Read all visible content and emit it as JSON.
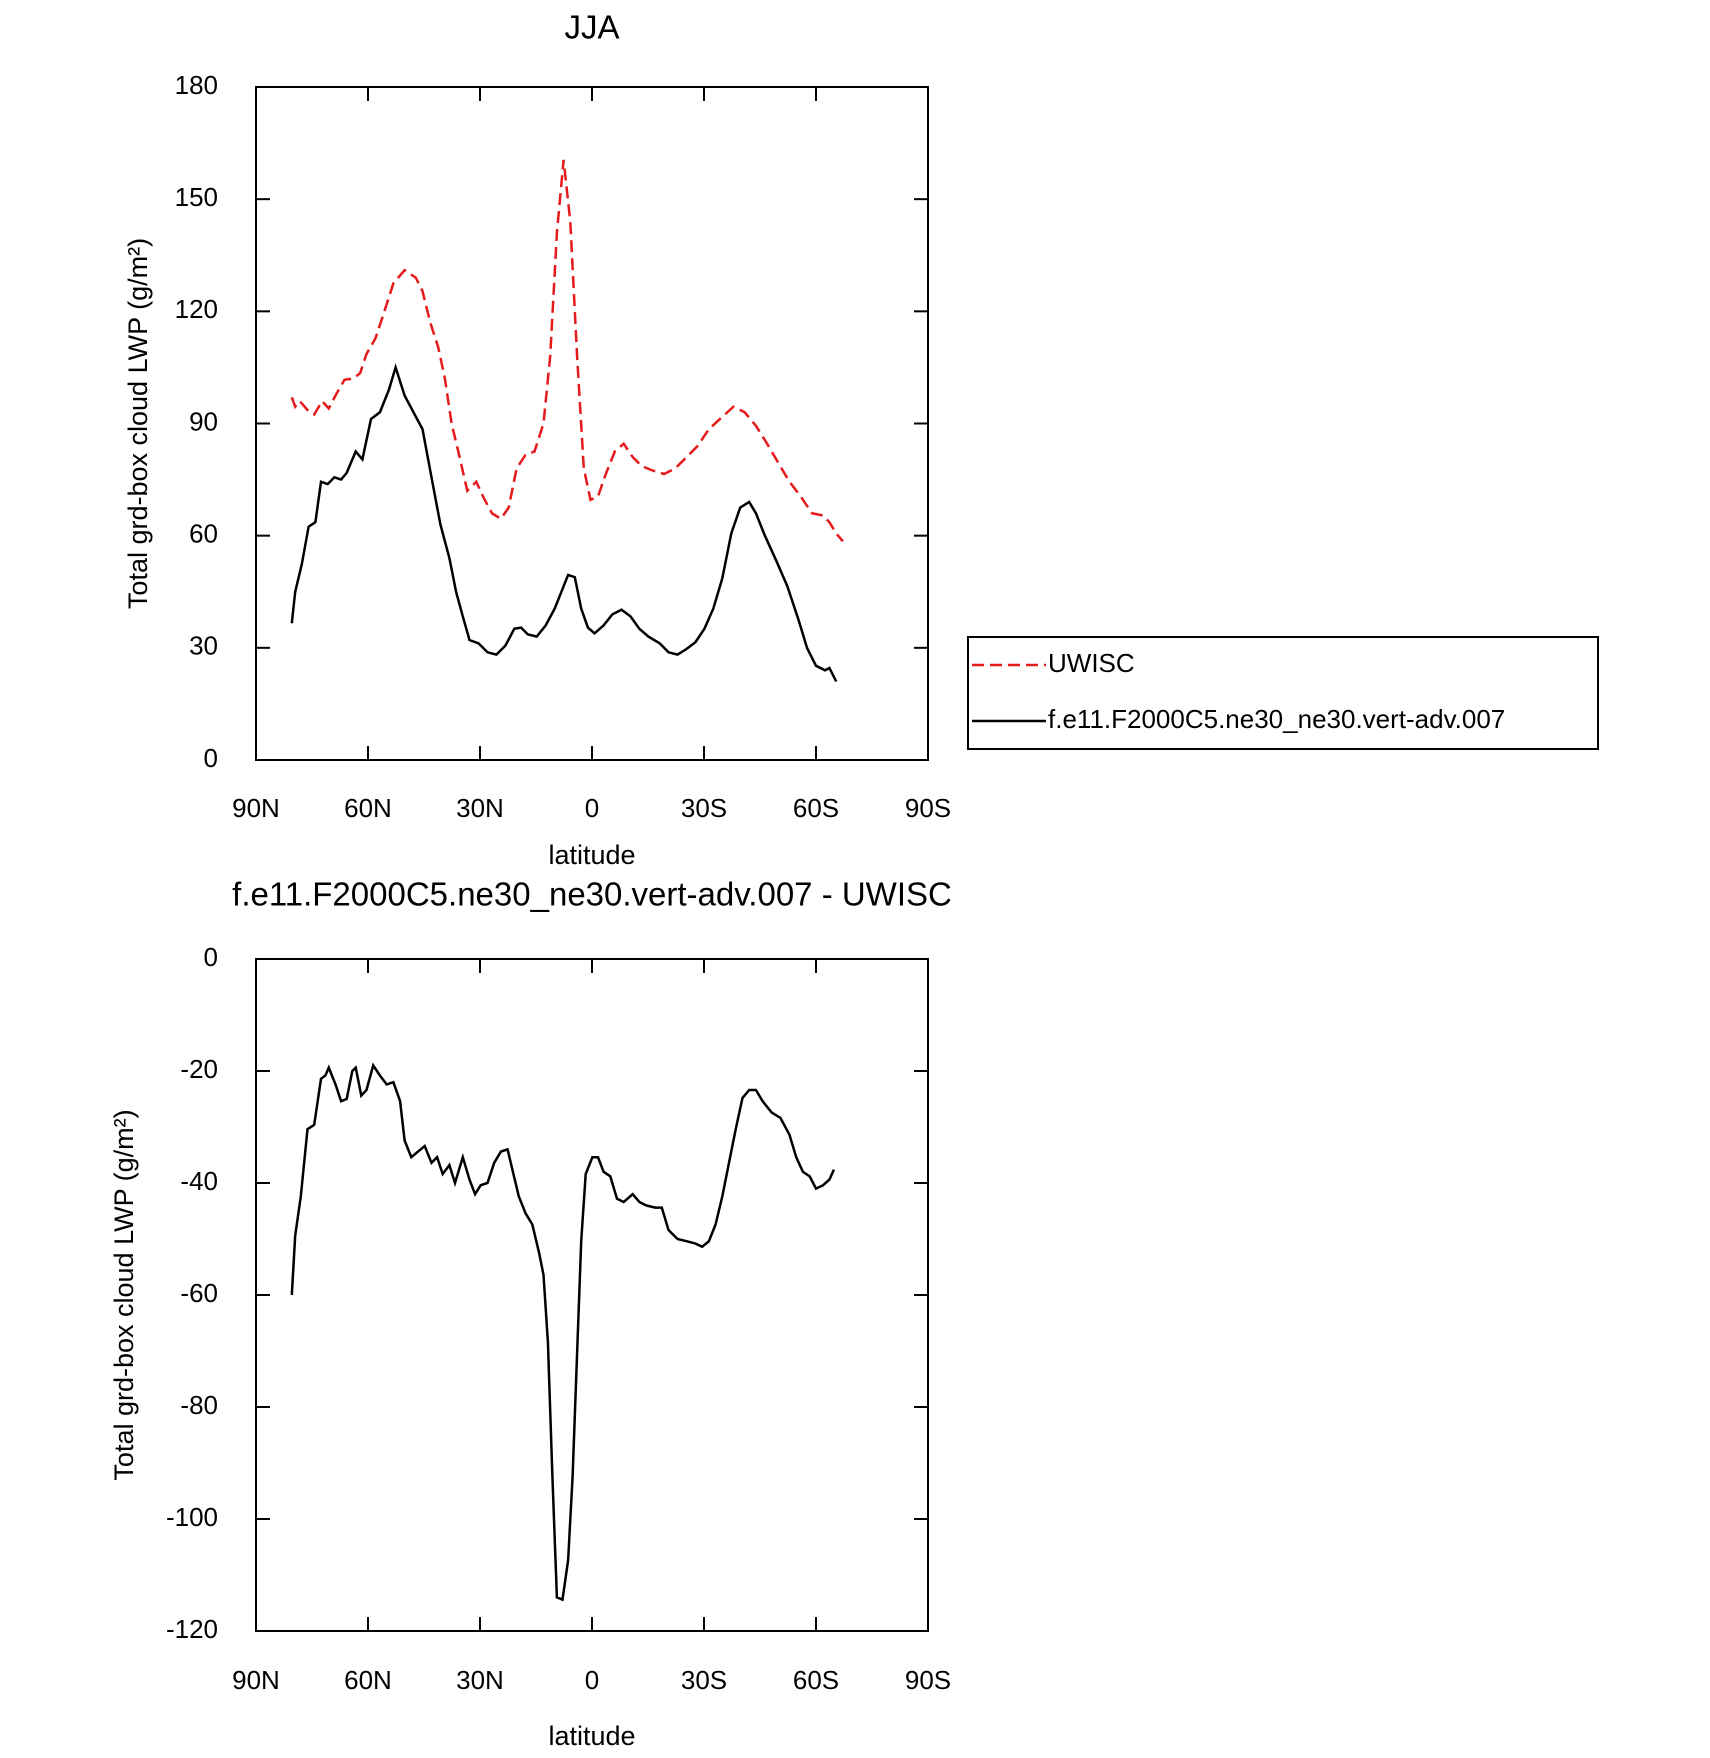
{
  "chart_data": [
    {
      "type": "line",
      "title": "JJA",
      "xlabel": "latitude",
      "ylabel": "Total grd-box cloud LWP (g/m²)",
      "xlim": [
        90,
        -90
      ],
      "xticks": [
        {
          "value": 90,
          "label": "90N"
        },
        {
          "value": 60,
          "label": "60N"
        },
        {
          "value": 30,
          "label": "30N"
        },
        0,
        {
          "value": -30,
          "label": "30S"
        },
        {
          "value": -60,
          "label": "60S"
        },
        {
          "value": -90,
          "label": "90S"
        }
      ],
      "ylim": [
        0,
        180
      ],
      "yticks": [
        0,
        30,
        60,
        90,
        120,
        150,
        180
      ],
      "legend": "right",
      "series": [
        {
          "name": "UWISC",
          "color": "#e41a1c",
          "line_style": "dashed",
          "x": [
            80.4,
            79.5,
            78.3,
            76.2,
            74.4,
            72.3,
            70.5,
            68.7,
            66.3,
            63.9,
            62.1,
            60.4,
            58,
            55.6,
            53.2,
            50.2,
            47.2,
            45.4,
            43.3,
            41.2,
            39.4,
            37.6,
            35.8,
            33.4,
            31,
            29.2,
            26.8,
            24.4,
            22.3,
            20.2,
            17.8,
            15.4,
            13,
            11.2,
            9.4,
            7.6,
            5.8,
            4,
            2.2,
            0.4,
            -1.6,
            -3.7,
            -6.1,
            -8.5,
            -10.9,
            -13.3,
            -16.3,
            -19.3,
            -22.3,
            -25.3,
            -28.3,
            -31.3,
            -34.9,
            -37.9,
            -40.9,
            -43.9,
            -46.9,
            -49.9,
            -52.9,
            -55.9,
            -58.9,
            -61.9,
            -63.6,
            -65.4,
            -67.2
          ],
          "values": [
            97,
            94.5,
            96,
            93.6,
            92.4,
            96,
            94,
            97.5,
            101.7,
            102,
            103.5,
            108.6,
            112.8,
            120,
            127.5,
            131,
            129,
            125.4,
            117,
            110.4,
            102,
            90,
            82.5,
            72,
            74.4,
            70.5,
            66,
            64.5,
            67.5,
            78,
            81.6,
            82.5,
            90,
            108,
            141,
            160.5,
            144,
            108,
            78,
            69.6,
            70.5,
            76.5,
            82.5,
            84.6,
            81,
            78.6,
            77.4,
            76.5,
            78,
            81,
            84,
            88.5,
            91.8,
            94.5,
            93,
            89.4,
            84.6,
            79.5,
            74.4,
            70.5,
            66,
            65.4,
            63.6,
            60.6,
            58.5
          ]
        },
        {
          "name": "f.e11.F2000C5.ne30_ne30.vert-adv.007",
          "color": "#000000",
          "line_style": "solid",
          "x": [
            80.4,
            79.5,
            77.7,
            75.9,
            74.1,
            72.6,
            70.8,
            69,
            67.2,
            65.7,
            63.3,
            61.5,
            59.2,
            56.8,
            54.4,
            52.6,
            50.2,
            47.8,
            45.4,
            43,
            40.6,
            38.2,
            36.4,
            34.6,
            32.8,
            30.4,
            28,
            25.6,
            23.2,
            20.8,
            19,
            17.2,
            14.8,
            12.4,
            10,
            8.2,
            6.4,
            4.6,
            2.9,
            1.1,
            -0.7,
            -3.1,
            -5.5,
            -7.9,
            -10.3,
            -12.7,
            -15.1,
            -18.1,
            -20.5,
            -22.9,
            -25.3,
            -27.7,
            -30.1,
            -32.5,
            -34.9,
            -37.3,
            -39.7,
            -42.1,
            -43.9,
            -46.3,
            -49.3,
            -52.3,
            -55.3,
            -57.6,
            -60,
            -62.4,
            -63.6,
            -65.4
          ],
          "values": [
            36.6,
            45,
            52.5,
            62.4,
            63.6,
            74.4,
            73.8,
            75.6,
            75,
            76.8,
            82.5,
            80.4,
            91.2,
            93,
            99,
            105,
            97.5,
            93,
            88.5,
            75.6,
            63,
            54,
            45,
            38.4,
            32.1,
            31.2,
            28.8,
            28.2,
            30.6,
            35.1,
            35.4,
            33.6,
            33,
            36,
            40.5,
            45,
            49.5,
            48.9,
            40.5,
            35.4,
            33.9,
            36,
            39,
            40.2,
            38.4,
            35.1,
            33,
            31.2,
            28.8,
            28.2,
            29.7,
            31.5,
            35.1,
            40.5,
            48.6,
            60.6,
            67.5,
            69,
            66,
            60,
            53.4,
            46.5,
            37.5,
            30,
            25.2,
            24,
            24.6,
            21
          ]
        }
      ]
    },
    {
      "type": "line",
      "title": "f.e11.F2000C5.ne30_ne30.vert-adv.007 - UWISC",
      "xlabel": "latitude",
      "ylabel": "Total grd-box cloud LWP (g/m²)",
      "xlim": [
        90,
        -90
      ],
      "xticks": [
        {
          "value": 90,
          "label": "90N"
        },
        {
          "value": 60,
          "label": "60N"
        },
        {
          "value": 30,
          "label": "30N"
        },
        0,
        {
          "value": -30,
          "label": "30S"
        },
        {
          "value": -60,
          "label": "60S"
        },
        {
          "value": -90,
          "label": "90S"
        }
      ],
      "ylim": [
        -120,
        0
      ],
      "yticks": [
        -120,
        -100,
        -80,
        -60,
        -40,
        -20,
        0
      ],
      "color": "#000000",
      "x": [
        80.4,
        79.5,
        78,
        76.2,
        74.4,
        72.6,
        71.4,
        70.5,
        68.7,
        67.2,
        65.7,
        64.2,
        63.3,
        61.8,
        60.4,
        58.6,
        56.8,
        55,
        53.2,
        51.4,
        50.2,
        48.4,
        46.6,
        44.8,
        43,
        41.5,
        40,
        38.2,
        36.7,
        34.6,
        32.8,
        31.3,
        29.8,
        28,
        26.2,
        24.4,
        22.6,
        21.4,
        19.6,
        17.8,
        16,
        14.2,
        13,
        11.8,
        10.6,
        9.4,
        7.9,
        6.4,
        5.2,
        4,
        2.9,
        1.7,
        -0.1,
        -1.6,
        -3.1,
        -4.9,
        -6.7,
        -8.5,
        -10.9,
        -12.7,
        -14.5,
        -16.9,
        -18.7,
        -20.5,
        -22.9,
        -25.3,
        -27.7,
        -29.5,
        -31.3,
        -33.1,
        -34.9,
        -36.7,
        -38.5,
        -40.3,
        -42.1,
        -43.9,
        -45.7,
        -48.1,
        -50.5,
        -52.9,
        -54.7,
        -56.5,
        -58.3,
        -60,
        -61.9,
        -63.6,
        -64.8
      ],
      "values": [
        -60,
        -49.4,
        -42.4,
        -30.4,
        -29.6,
        -21.4,
        -20.8,
        -19.4,
        -22.4,
        -25.4,
        -25,
        -20,
        -19.4,
        -24.4,
        -23.4,
        -19,
        -20.8,
        -22.4,
        -22,
        -25.4,
        -32.4,
        -35.4,
        -34.4,
        -33.4,
        -36.4,
        -35.4,
        -38.4,
        -36.8,
        -40,
        -35.4,
        -39.4,
        -42,
        -40.4,
        -40,
        -36.4,
        -34.4,
        -34,
        -37.4,
        -42.4,
        -45.4,
        -47.4,
        -52.4,
        -56.4,
        -68.4,
        -92.4,
        -114,
        -114.4,
        -107.4,
        -92.4,
        -70.4,
        -50.4,
        -38.4,
        -35.4,
        -35.4,
        -38,
        -38.8,
        -42.8,
        -43.4,
        -42,
        -43.4,
        -44,
        -44.4,
        -44.4,
        -48.4,
        -50,
        -50.4,
        -50.8,
        -51.4,
        -50.4,
        -47.4,
        -42.4,
        -36.4,
        -30.4,
        -24.8,
        -23.4,
        -23.4,
        -25.4,
        -27.4,
        -28.4,
        -31.4,
        -35.4,
        -38,
        -38.8,
        -41,
        -40.4,
        -39.4,
        -37.6
      ]
    }
  ]
}
